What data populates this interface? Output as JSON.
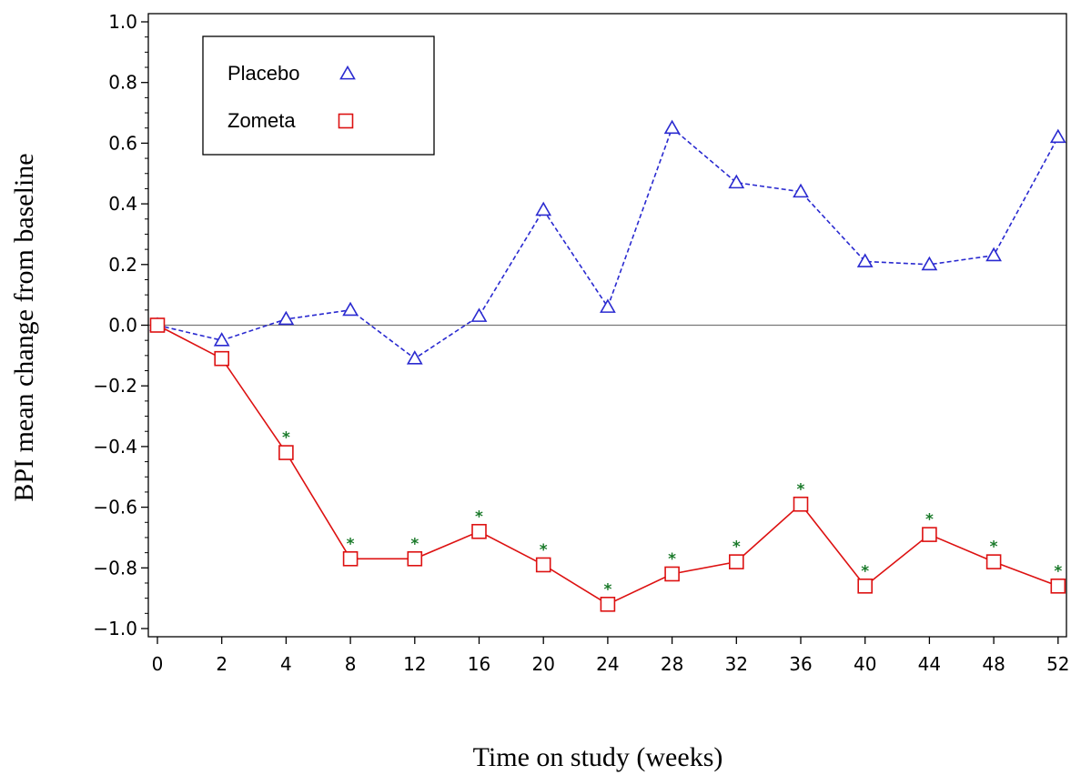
{
  "chart_data": {
    "type": "line",
    "xlabel": "Time on study (weeks)",
    "ylabel": "BPI mean change from baseline",
    "categories": [
      "0",
      "2",
      "4",
      "8",
      "12",
      "16",
      "20",
      "24",
      "28",
      "32",
      "36",
      "40",
      "44",
      "48",
      "52"
    ],
    "ylim": [
      -1.0,
      1.0
    ],
    "yticks": [
      "1.0",
      "0.8",
      "0.6",
      "0.4",
      "0.2",
      "0.0",
      "-0.2",
      "-0.4",
      "-0.6",
      "-0.8",
      "-1.0"
    ],
    "grid": false,
    "reference_line_y": 0.0,
    "legend_position": "top-left",
    "series": [
      {
        "name": "Placebo",
        "marker": "triangle",
        "line_style": "dashed",
        "color": "#2a2ad0",
        "values": [
          0.0,
          -0.05,
          0.02,
          0.05,
          -0.11,
          0.03,
          0.38,
          0.06,
          0.65,
          0.47,
          0.44,
          0.21,
          0.2,
          0.23,
          0.62
        ]
      },
      {
        "name": "Zometa",
        "marker": "square",
        "line_style": "solid",
        "color": "#dd1111",
        "values": [
          0.0,
          -0.11,
          -0.42,
          -0.77,
          -0.77,
          -0.68,
          -0.79,
          -0.92,
          -0.82,
          -0.78,
          -0.59,
          -0.86,
          -0.69,
          -0.78,
          -0.86
        ]
      }
    ],
    "significance_marker": "*",
    "significance_color": "#1a7a2a",
    "significant_points": [
      "4",
      "8",
      "12",
      "16",
      "20",
      "24",
      "28",
      "32",
      "36",
      "40",
      "44",
      "48",
      "52"
    ]
  }
}
